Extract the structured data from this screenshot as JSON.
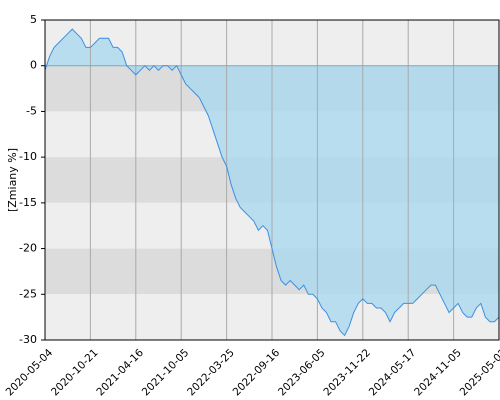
{
  "chart_data": {
    "type": "line",
    "y_label": "[Zmiany %]",
    "categories": [
      "2020-05-04",
      null,
      null,
      null,
      null,
      null,
      null,
      null,
      null,
      null,
      "2020-10-21",
      null,
      null,
      null,
      null,
      null,
      null,
      null,
      null,
      null,
      "2021-04-16",
      null,
      null,
      null,
      null,
      null,
      null,
      null,
      null,
      null,
      "2021-10-05",
      null,
      null,
      null,
      null,
      null,
      null,
      null,
      null,
      null,
      "2022-03-25",
      null,
      null,
      null,
      null,
      null,
      null,
      null,
      null,
      null,
      "2022-09-16",
      null,
      null,
      null,
      null,
      null,
      null,
      null,
      null,
      null,
      "2023-06-05",
      null,
      null,
      null,
      null,
      null,
      null,
      null,
      null,
      null,
      "2023-11-22",
      null,
      null,
      null,
      null,
      null,
      null,
      null,
      null,
      null,
      "2024-05-17",
      null,
      null,
      null,
      null,
      null,
      null,
      null,
      null,
      null,
      "2024-11-05",
      null,
      null,
      null,
      null,
      null,
      null,
      null,
      null,
      null,
      "2025-05-02"
    ],
    "series": [
      {
        "color": "#3d8fe0",
        "fill": "#a9d8ee",
        "values": [
          -0.5,
          1,
          2,
          2.5,
          3,
          3.5,
          4,
          3.5,
          3,
          2,
          2,
          2.5,
          3,
          3,
          3,
          2,
          2,
          1.5,
          0,
          -0.5,
          -1,
          -0.5,
          0,
          -0.5,
          0,
          -0.5,
          0,
          0,
          -0.5,
          0,
          -1,
          -2,
          -2.5,
          -3,
          -3.5,
          -4.5,
          -5.5,
          -7,
          -8.5,
          -10,
          -11,
          -13,
          -14.5,
          -15.5,
          -16,
          -16.5,
          -17,
          -18,
          -17.5,
          -18,
          -20,
          -22,
          -23.5,
          -24,
          -23.5,
          -24,
          -24.5,
          -24,
          -25,
          -25,
          -25.5,
          -26.5,
          -27,
          -28,
          -28,
          -29,
          -29.5,
          -28.5,
          -27,
          -26,
          -25.5,
          -26,
          -26,
          -26.5,
          -26.5,
          -27,
          -28,
          -27,
          -26.5,
          -26,
          -26,
          -26,
          -25.5,
          -25,
          -24.5,
          -24,
          -24,
          -25,
          -26,
          -27,
          -26.5,
          -26,
          -27,
          -27.5,
          -27.5,
          -26.5,
          -26,
          -27.5,
          -28,
          -28,
          -27.5
        ]
      }
    ],
    "ylim": [
      -30,
      5
    ],
    "yticks": [
      5,
      0,
      -5,
      -10,
      -15,
      -20,
      -25,
      -30
    ],
    "grid": true
  }
}
